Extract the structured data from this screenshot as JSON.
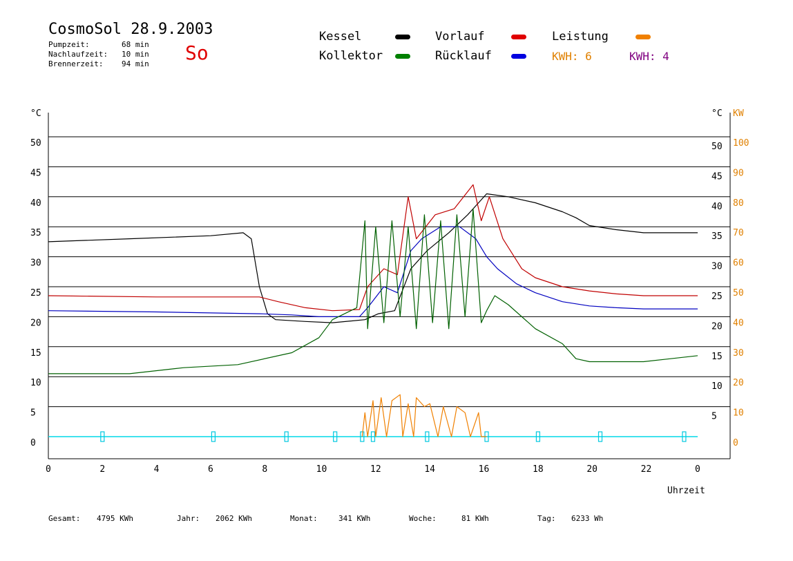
{
  "header": {
    "title": "CosmoSol 28.9.2003",
    "day": "So",
    "info": [
      {
        "label": "Pumpzeit:",
        "value": "68 min"
      },
      {
        "label": "Nachlaufzeit:",
        "value": "10 min"
      },
      {
        "label": "Brennerzeit:",
        "value": "94 min"
      }
    ]
  },
  "legend": {
    "items": [
      {
        "label": "Kessel",
        "color": "#000000"
      },
      {
        "label": "Vorlauf",
        "color": "#e00000"
      },
      {
        "label": "Leistung",
        "color": "#f08000"
      },
      {
        "label": "Kollektor",
        "color": "#008000"
      },
      {
        "label": "Rücklauf",
        "color": "#0000e0"
      }
    ],
    "kwh": [
      {
        "text": "KWH: 6",
        "color": "#e08000"
      },
      {
        "text": "KWH: 4",
        "color": "#800080"
      }
    ]
  },
  "axes": {
    "left_unit": "°C",
    "right_unit_temp": "°C",
    "right_unit_kw": "KW",
    "xlabel": "Uhrzeit"
  },
  "footer": [
    {
      "label": "Gesamt:",
      "value": "4795 KWh"
    },
    {
      "label": "Jahr:",
      "value": "2062 KWh"
    },
    {
      "label": "Monat:",
      "value": "341 KWh"
    },
    {
      "label": "Woche:",
      "value": "81 KWh"
    },
    {
      "label": "Tag:",
      "value": "6233 Wh"
    }
  ],
  "chart_data": {
    "type": "line",
    "xlabel": "Uhrzeit",
    "ylabel": "°C",
    "y2label": "KW",
    "xlim": [
      0,
      24
    ],
    "ylim": [
      0,
      50
    ],
    "y2lim": [
      0,
      100
    ],
    "grid": true,
    "x_ticks": [
      "0",
      "2",
      "4",
      "6",
      "8",
      "10",
      "12",
      "14",
      "16",
      "18",
      "20",
      "22",
      "0"
    ],
    "y_ticks": [
      "0",
      "5",
      "10",
      "15",
      "20",
      "25",
      "30",
      "35",
      "40",
      "45",
      "50"
    ],
    "y_ticks_right": [
      "5",
      "10",
      "15",
      "20",
      "25",
      "30",
      "35",
      "40",
      "45",
      "50"
    ],
    "y2_ticks": [
      "0",
      "10",
      "20",
      "30",
      "40",
      "50",
      "60",
      "70",
      "80",
      "90",
      "100"
    ],
    "series": [
      {
        "name": "Kessel",
        "color": "#000000",
        "x": [
          0,
          3,
          6,
          7.2,
          7.5,
          7.8,
          8.1,
          8.4,
          9.5,
          10.5,
          11.7,
          12.2,
          12.8,
          13.4,
          14,
          14.8,
          15.5,
          15.9,
          16.2,
          17,
          18,
          19,
          19.5,
          20,
          21,
          22,
          23,
          24
        ],
        "y": [
          32.5,
          33,
          33.5,
          34,
          33,
          25,
          20.5,
          19.5,
          19.2,
          19,
          19.5,
          20.5,
          21,
          28,
          31,
          34,
          37,
          39,
          40.5,
          40,
          39,
          37.5,
          36.5,
          35.2,
          34.5,
          34,
          34,
          34
        ]
      },
      {
        "name": "Vorlauf",
        "color": "#c00000",
        "x": [
          0,
          4,
          7.8,
          8.5,
          9.5,
          10.5,
          11.5,
          11.8,
          12.4,
          12.9,
          13.3,
          13.6,
          14.3,
          15,
          15.7,
          16,
          16.3,
          16.8,
          17.5,
          18,
          19,
          20,
          21,
          22,
          23,
          24
        ],
        "y": [
          23.5,
          23.3,
          23.3,
          22.5,
          21.5,
          21,
          21.2,
          25,
          28,
          27,
          40,
          33,
          37,
          38,
          42,
          36,
          40,
          33,
          28,
          26.5,
          25,
          24.3,
          23.8,
          23.5,
          23.5,
          23.5
        ]
      },
      {
        "name": "Rücklauf",
        "color": "#0000c0",
        "x": [
          0,
          4,
          7.8,
          9,
          10,
          11.5,
          11.8,
          12.4,
          12.9,
          13.4,
          13.8,
          14.5,
          15.2,
          15.8,
          16.2,
          16.6,
          17.3,
          18,
          19,
          20,
          21,
          22,
          23,
          24
        ],
        "y": [
          21,
          20.8,
          20.5,
          20.3,
          20,
          20,
          21.5,
          25,
          24,
          31,
          33,
          35,
          35,
          33,
          30,
          28,
          25.5,
          24,
          22.5,
          21.8,
          21.5,
          21.3,
          21.3,
          21.3
        ]
      },
      {
        "name": "Kollektor",
        "color": "#006000",
        "x": [
          0,
          3,
          5,
          7,
          9,
          10,
          10.5,
          11.4,
          11.7,
          11.8,
          12.1,
          12.4,
          12.7,
          13.0,
          13.3,
          13.6,
          13.9,
          14.2,
          14.5,
          14.8,
          15.1,
          15.4,
          15.7,
          16.0,
          16.2,
          16.5,
          17,
          18,
          19,
          19.5,
          20,
          21,
          22,
          23,
          24
        ],
        "y": [
          10.5,
          10.5,
          11.5,
          12,
          14,
          16.5,
          19.5,
          21.5,
          36,
          18,
          35,
          19,
          36,
          20,
          35,
          18,
          37,
          19,
          36,
          18,
          37,
          20,
          38,
          19,
          21,
          23.5,
          22,
          18,
          15.5,
          13,
          12.5,
          12.5,
          12.5,
          13,
          13.5
        ]
      },
      {
        "name": "Leistung",
        "color": "#f08000",
        "axis": "right",
        "x": [
          11.6,
          11.7,
          11.8,
          12.0,
          12.1,
          12.3,
          12.5,
          12.7,
          13.0,
          13.1,
          13.3,
          13.5,
          13.6,
          13.9,
          14.1,
          14.4,
          14.6,
          14.9,
          15.1,
          15.4,
          15.6,
          15.9,
          16.0,
          16.2
        ],
        "y": [
          0,
          8,
          0,
          12,
          0,
          13,
          0,
          12,
          14,
          0,
          11,
          0,
          13,
          10,
          11,
          0,
          10,
          0,
          10,
          8,
          0,
          8,
          0,
          0
        ]
      }
    ],
    "markers_at_zero": [
      2,
      6.1,
      8.8,
      10.6,
      11.6,
      12.0,
      14.0,
      16.2,
      18.1,
      20.4,
      23.5
    ]
  }
}
